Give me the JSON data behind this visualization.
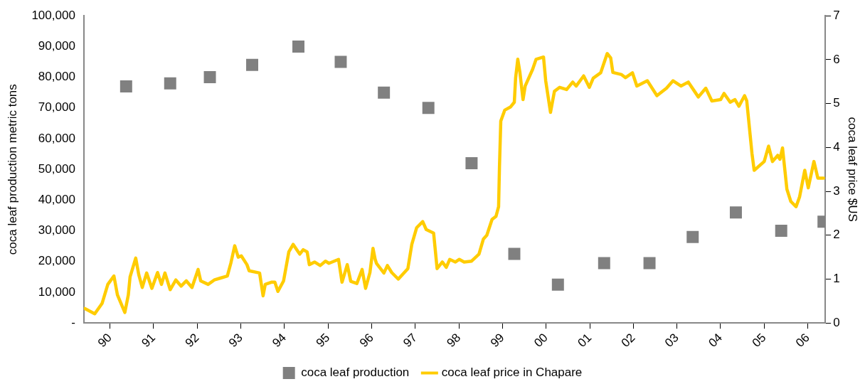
{
  "chart_data": {
    "type": "scatter",
    "ylabel": "coca leaf production metric tons",
    "y2label": "coca leaf price $US",
    "xlim": [
      1989.4,
      2006.4
    ],
    "xticks": [
      {
        "value": 1990,
        "label": "90"
      },
      {
        "value": 1991,
        "label": "91"
      },
      {
        "value": 1992,
        "label": "92"
      },
      {
        "value": 1993,
        "label": "93"
      },
      {
        "value": 1994,
        "label": "94"
      },
      {
        "value": 1995,
        "label": "95"
      },
      {
        "value": 1996,
        "label": "96"
      },
      {
        "value": 1997,
        "label": "97"
      },
      {
        "value": 1998,
        "label": "98"
      },
      {
        "value": 1999,
        "label": "99"
      },
      {
        "value": 2000,
        "label": "00"
      },
      {
        "value": 2001,
        "label": "01"
      },
      {
        "value": 2002,
        "label": "02"
      },
      {
        "value": 2003,
        "label": "03"
      },
      {
        "value": 2004,
        "label": "04"
      },
      {
        "value": 2005,
        "label": "05"
      },
      {
        "value": 2006,
        "label": "06"
      }
    ],
    "ylim": [
      0,
      100000
    ],
    "yticks": [
      {
        "value": 0,
        "label": "-"
      },
      {
        "value": 10000,
        "label": "10,000"
      },
      {
        "value": 20000,
        "label": "20,000"
      },
      {
        "value": 30000,
        "label": "30,000"
      },
      {
        "value": 40000,
        "label": "40,000"
      },
      {
        "value": 50000,
        "label": "50,000"
      },
      {
        "value": 60000,
        "label": "60,000"
      },
      {
        "value": 70000,
        "label": "70,000"
      },
      {
        "value": 80000,
        "label": "80,000"
      },
      {
        "value": 90000,
        "label": "90,000"
      },
      {
        "value": 100000,
        "label": "100,000"
      }
    ],
    "y2lim": [
      0,
      7
    ],
    "y2ticks": [
      0,
      1,
      2,
      3,
      4,
      5,
      6,
      7
    ],
    "grid": false,
    "legend": "bottom",
    "series": [
      {
        "name": "coca leaf production",
        "type": "scatter",
        "marker": "square",
        "color": "#808080",
        "x": [
          1990.37,
          1991.38,
          1992.29,
          1993.26,
          1994.32,
          1995.29,
          1996.28,
          1997.3,
          1998.29,
          1999.27,
          2000.27,
          2001.33,
          2002.37,
          2003.36,
          2004.35,
          2005.39,
          2006.36
        ],
        "values": [
          77000,
          78000,
          80000,
          84000,
          90000,
          85000,
          75000,
          70000,
          52000,
          22500,
          12500,
          19500,
          19500,
          28000,
          36000,
          30000,
          33000
        ]
      },
      {
        "name": "coca leaf price in Chapare",
        "type": "line",
        "axis": "y2",
        "marker": "none",
        "line_style": "solid",
        "color": "#ffcc00",
        "x": [
          1989.42,
          1989.65,
          1989.82,
          1989.95,
          1990.09,
          1990.17,
          1990.34,
          1990.42,
          1990.46,
          1990.59,
          1990.66,
          1990.74,
          1990.84,
          1990.96,
          1991.09,
          1991.18,
          1991.26,
          1991.38,
          1991.51,
          1991.63,
          1991.75,
          1991.88,
          1992.02,
          1992.08,
          1992.25,
          1992.39,
          1992.52,
          1992.69,
          1992.77,
          1992.86,
          1992.94,
          1993.01,
          1993.14,
          1993.19,
          1993.43,
          1993.51,
          1993.56,
          1993.7,
          1993.78,
          1993.85,
          1993.98,
          1994.1,
          1994.2,
          1994.35,
          1994.43,
          1994.52,
          1994.57,
          1994.69,
          1994.82,
          1994.94,
          1995.02,
          1995.24,
          1995.32,
          1995.44,
          1995.52,
          1995.66,
          1995.78,
          1995.86,
          1995.96,
          1996.03,
          1996.08,
          1996.11,
          1996.28,
          1996.36,
          1996.46,
          1996.61,
          1996.83,
          1996.92,
          1997.03,
          1997.17,
          1997.25,
          1997.42,
          1997.5,
          1997.62,
          1997.71,
          1997.79,
          1997.92,
          1998.01,
          1998.12,
          1998.29,
          1998.46,
          1998.56,
          1998.64,
          1998.76,
          1998.85,
          1998.91,
          1998.93,
          1998.96,
          1999.05,
          1999.18,
          1999.27,
          1999.3,
          1999.35,
          1999.4,
          1999.47,
          1999.52,
          1999.69,
          1999.77,
          1999.94,
          1999.99,
          2000.1,
          2000.19,
          2000.31,
          2000.47,
          2000.61,
          2000.69,
          2000.86,
          2000.99,
          2001.08,
          2001.25,
          2001.4,
          2001.48,
          2001.53,
          2001.73,
          2001.82,
          2001.98,
          2002.08,
          2002.32,
          2002.54,
          2002.76,
          2002.91,
          2003.09,
          2003.26,
          2003.49,
          2003.66,
          2003.8,
          2004.0,
          2004.08,
          2004.22,
          2004.33,
          2004.42,
          2004.55,
          2004.6,
          2004.72,
          2004.77,
          2005.0,
          2005.1,
          2005.19,
          2005.31,
          2005.36,
          2005.42,
          2005.52,
          2005.61,
          2005.73,
          2005.81,
          2005.93,
          2006.01,
          2006.14,
          2006.23,
          2006.36
        ],
        "values": [
          0.33,
          0.21,
          0.45,
          0.88,
          1.07,
          0.64,
          0.24,
          0.64,
          1.05,
          1.48,
          1.1,
          0.81,
          1.14,
          0.79,
          1.15,
          0.88,
          1.14,
          0.76,
          0.98,
          0.84,
          0.96,
          0.81,
          1.22,
          0.96,
          0.88,
          0.98,
          1.02,
          1.07,
          1.36,
          1.76,
          1.5,
          1.53,
          1.33,
          1.19,
          1.14,
          0.62,
          0.88,
          0.93,
          0.93,
          0.72,
          0.96,
          1.62,
          1.79,
          1.57,
          1.67,
          1.62,
          1.33,
          1.39,
          1.31,
          1.41,
          1.36,
          1.45,
          0.93,
          1.33,
          0.95,
          0.9,
          1.22,
          0.79,
          1.15,
          1.7,
          1.45,
          1.36,
          1.14,
          1.31,
          1.15,
          1.0,
          1.24,
          1.79,
          2.17,
          2.31,
          2.13,
          2.05,
          1.24,
          1.39,
          1.27,
          1.45,
          1.39,
          1.45,
          1.39,
          1.41,
          1.57,
          1.91,
          2.0,
          2.36,
          2.43,
          2.65,
          3.56,
          4.6,
          4.85,
          4.92,
          5.03,
          5.58,
          6.01,
          5.7,
          5.09,
          5.4,
          5.78,
          6.01,
          6.06,
          5.52,
          4.8,
          5.28,
          5.37,
          5.32,
          5.49,
          5.4,
          5.63,
          5.37,
          5.58,
          5.7,
          6.14,
          6.04,
          5.71,
          5.66,
          5.59,
          5.7,
          5.4,
          5.52,
          5.18,
          5.35,
          5.52,
          5.4,
          5.49,
          5.15,
          5.35,
          5.06,
          5.09,
          5.23,
          5.03,
          5.09,
          4.94,
          5.18,
          5.06,
          3.86,
          3.48,
          3.68,
          4.03,
          3.68,
          3.82,
          3.73,
          3.99,
          3.05,
          2.77,
          2.65,
          2.87,
          3.48,
          3.08,
          3.68,
          3.3,
          3.3
        ]
      }
    ]
  }
}
